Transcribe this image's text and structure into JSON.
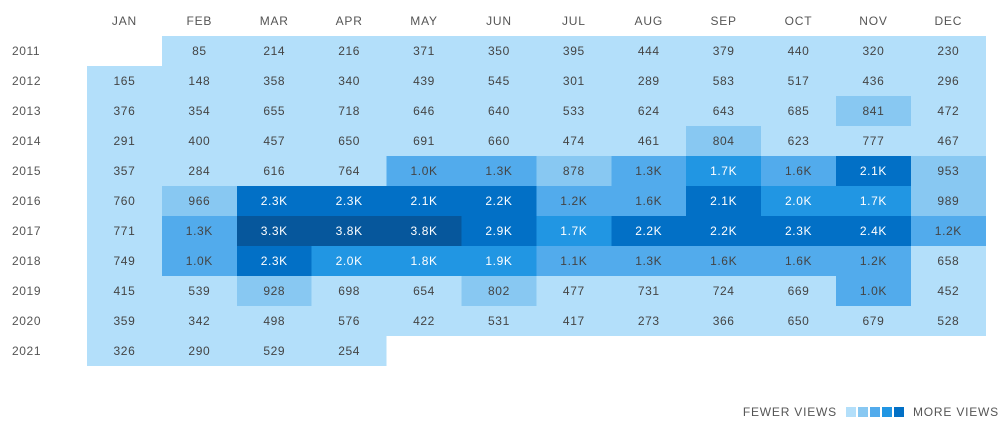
{
  "chart_data": {
    "type": "heatmap",
    "columns": [
      "JAN",
      "FEB",
      "MAR",
      "APR",
      "MAY",
      "JUN",
      "JUL",
      "AUG",
      "SEP",
      "OCT",
      "NOV",
      "DEC"
    ],
    "rows": [
      "2011",
      "2012",
      "2013",
      "2014",
      "2015",
      "2016",
      "2017",
      "2018",
      "2019",
      "2020",
      "2021"
    ],
    "values": [
      [
        null,
        85,
        214,
        216,
        371,
        350,
        395,
        444,
        379,
        440,
        320,
        230
      ],
      [
        165,
        148,
        358,
        340,
        439,
        545,
        301,
        289,
        583,
        517,
        436,
        296
      ],
      [
        376,
        354,
        655,
        718,
        646,
        640,
        533,
        624,
        643,
        685,
        841,
        472
      ],
      [
        291,
        400,
        457,
        650,
        691,
        660,
        474,
        461,
        804,
        623,
        777,
        467
      ],
      [
        357,
        284,
        616,
        764,
        1000,
        1300,
        878,
        1300,
        1700,
        1600,
        2100,
        953
      ],
      [
        760,
        966,
        2300,
        2300,
        2100,
        2200,
        1200,
        1600,
        2100,
        2000,
        1700,
        989
      ],
      [
        771,
        1300,
        3300,
        3800,
        3800,
        2900,
        1700,
        2200,
        2200,
        2300,
        2400,
        1200
      ],
      [
        749,
        1000,
        2300,
        2000,
        1800,
        1900,
        1100,
        1300,
        1600,
        1600,
        1200,
        658
      ],
      [
        415,
        539,
        928,
        698,
        654,
        802,
        477,
        731,
        724,
        669,
        1000,
        452
      ],
      [
        359,
        342,
        498,
        576,
        422,
        531,
        417,
        273,
        366,
        650,
        679,
        528
      ],
      [
        326,
        290,
        529,
        254,
        null,
        null,
        null,
        null,
        null,
        null,
        null,
        null
      ]
    ],
    "labels": [
      [
        "",
        "85",
        "214",
        "216",
        "371",
        "350",
        "395",
        "444",
        "379",
        "440",
        "320",
        "230"
      ],
      [
        "165",
        "148",
        "358",
        "340",
        "439",
        "545",
        "301",
        "289",
        "583",
        "517",
        "436",
        "296"
      ],
      [
        "376",
        "354",
        "655",
        "718",
        "646",
        "640",
        "533",
        "624",
        "643",
        "685",
        "841",
        "472"
      ],
      [
        "291",
        "400",
        "457",
        "650",
        "691",
        "660",
        "474",
        "461",
        "804",
        "623",
        "777",
        "467"
      ],
      [
        "357",
        "284",
        "616",
        "764",
        "1.0K",
        "1.3K",
        "878",
        "1.3K",
        "1.7K",
        "1.6K",
        "2.1K",
        "953"
      ],
      [
        "760",
        "966",
        "2.3K",
        "2.3K",
        "2.1K",
        "2.2K",
        "1.2K",
        "1.6K",
        "2.1K",
        "2.0K",
        "1.7K",
        "989"
      ],
      [
        "771",
        "1.3K",
        "3.3K",
        "3.8K",
        "3.8K",
        "2.9K",
        "1.7K",
        "2.2K",
        "2.2K",
        "2.3K",
        "2.4K",
        "1.2K"
      ],
      [
        "749",
        "1.0K",
        "2.3K",
        "2.0K",
        "1.8K",
        "1.9K",
        "1.1K",
        "1.3K",
        "1.6K",
        "1.6K",
        "1.2K",
        "658"
      ],
      [
        "415",
        "539",
        "928",
        "698",
        "654",
        "802",
        "477",
        "731",
        "724",
        "669",
        "1.0K",
        "452"
      ],
      [
        "359",
        "342",
        "498",
        "576",
        "422",
        "531",
        "417",
        "273",
        "366",
        "650",
        "679",
        "528"
      ],
      [
        "326",
        "290",
        "529",
        "254",
        "",
        "",
        "",
        "",
        "",
        "",
        "",
        ""
      ]
    ],
    "color_scale": [
      "#b3dffa",
      "#88c8f2",
      "#52abec",
      "#2196e3",
      "#0270c6",
      "#06579c"
    ],
    "color_thresholds": [
      800,
      1000,
      1650,
      2050,
      3000
    ]
  },
  "legend": {
    "fewer_label": "FEWER VIEWS",
    "more_label": "MORE VIEWS"
  }
}
